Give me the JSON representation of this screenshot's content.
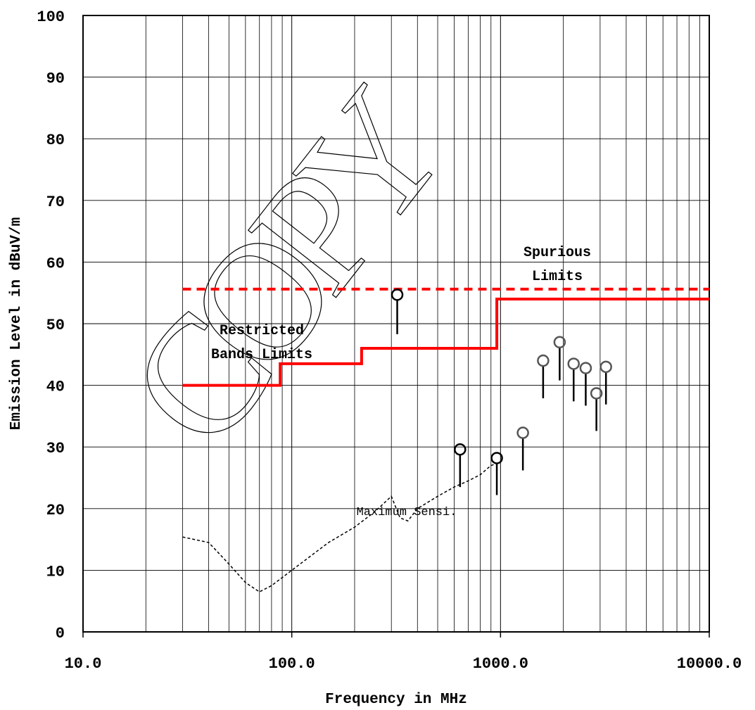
{
  "chart_data": {
    "type": "line",
    "xlabel": "Frequency in MHz",
    "ylabel": "Emission Level in dBuV/m",
    "x_scale": "log",
    "xlim": [
      10,
      10000
    ],
    "ylim": [
      0,
      100
    ],
    "x_ticks": [
      "10.0",
      "100.0",
      "1000.0",
      "10000.0"
    ],
    "y_ticks": [
      "0",
      "10",
      "20",
      "30",
      "40",
      "50",
      "60",
      "70",
      "80",
      "90",
      "100"
    ],
    "grid": true,
    "annotations": {
      "spurious_line1": "Spurious",
      "spurious_line2": "Limits",
      "restricted_line1": "Restricted",
      "restricted_line2": "Bands Limits",
      "sensitivity": "Maximum Sensi."
    },
    "watermark": "COPY",
    "colors": {
      "limit": "#ff0000",
      "measurement": "#000000"
    },
    "series": {
      "spurious_limit": {
        "x": [
          30,
          10000
        ],
        "y": [
          55.6,
          55.6
        ]
      },
      "restricted_limit": {
        "x": [
          30,
          88,
          88,
          216,
          216,
          960,
          960,
          10000
        ],
        "y": [
          40,
          40,
          43.5,
          43.5,
          46,
          46,
          54,
          54
        ]
      },
      "max_sensitivity": {
        "x": [
          30,
          40,
          50,
          60,
          70,
          80,
          100,
          150,
          200,
          250,
          300,
          330,
          360,
          400,
          500,
          600,
          700,
          800,
          900,
          1000
        ],
        "y": [
          15.4,
          14.5,
          11,
          8,
          6.5,
          7.5,
          10,
          14.5,
          17,
          19.5,
          22,
          18.5,
          18,
          20,
          22,
          23.5,
          24.5,
          25.5,
          27,
          27.5
        ]
      },
      "measurements": [
        {
          "x": 320,
          "peak": 54.7,
          "qp": 48.3,
          "marker": "black"
        },
        {
          "x": 640,
          "peak": 29.6,
          "qp": 23.5,
          "marker": "black"
        },
        {
          "x": 960,
          "peak": 28.2,
          "qp": 22.2,
          "marker": "black"
        },
        {
          "x": 1280,
          "peak": 32.3,
          "qp": 26.2,
          "marker": "gray"
        },
        {
          "x": 1600,
          "peak": 44,
          "qp": 37.9,
          "marker": "gray"
        },
        {
          "x": 1920,
          "peak": 47,
          "qp": 40.8,
          "marker": "gray"
        },
        {
          "x": 2240,
          "peak": 43.5,
          "qp": 37.4,
          "marker": "gray"
        },
        {
          "x": 2560,
          "peak": 42.8,
          "qp": 36.7,
          "marker": "gray"
        },
        {
          "x": 2880,
          "peak": 38.7,
          "qp": 32.6,
          "marker": "gray"
        },
        {
          "x": 3200,
          "peak": 43,
          "qp": 36.9,
          "marker": "gray"
        }
      ]
    }
  }
}
